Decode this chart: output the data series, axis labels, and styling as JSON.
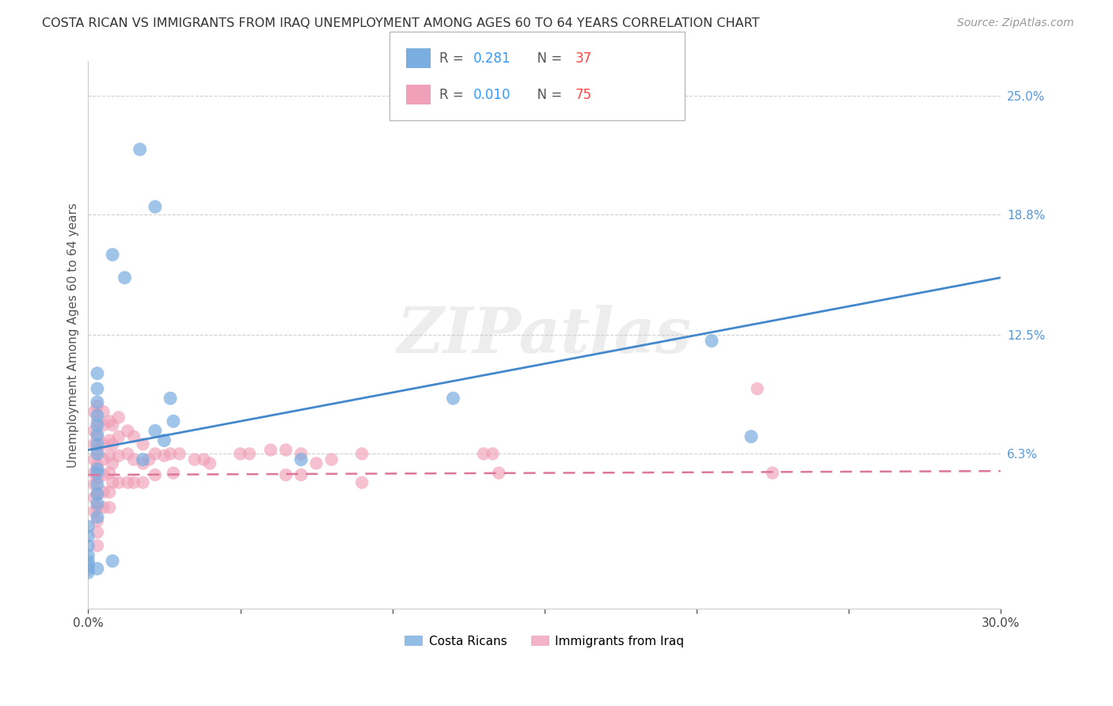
{
  "title": "COSTA RICAN VS IMMIGRANTS FROM IRAQ UNEMPLOYMENT AMONG AGES 60 TO 64 YEARS CORRELATION CHART",
  "source": "Source: ZipAtlas.com",
  "ylabel": "Unemployment Among Ages 60 to 64 years",
  "xlim": [
    0.0,
    0.3
  ],
  "ylim": [
    -0.018,
    0.268
  ],
  "xticks": [
    0.0,
    0.05,
    0.1,
    0.15,
    0.2,
    0.25,
    0.3
  ],
  "xticklabels": [
    "0.0%",
    "",
    "",
    "",
    "",
    "",
    "30.0%"
  ],
  "ytick_positions": [
    0.063,
    0.125,
    0.188,
    0.25
  ],
  "ytick_labels": [
    "6.3%",
    "12.5%",
    "18.8%",
    "25.0%"
  ],
  "grid_color": "#d0d0d0",
  "background_color": "#ffffff",
  "watermark": "ZIPatlas",
  "blue_color": "#7aade0",
  "pink_color": "#f0a0b8",
  "legend_label_blue": "Costa Ricans",
  "legend_label_pink": "Immigrants from Iraq",
  "blue_r": "0.281",
  "blue_n": "37",
  "pink_r": "0.010",
  "pink_n": "75",
  "blue_trend_x": [
    0.0,
    0.3
  ],
  "blue_trend_y": [
    0.065,
    0.155
  ],
  "pink_trend_x": [
    0.0,
    0.3
  ],
  "pink_trend_y": [
    0.052,
    0.054
  ],
  "blue_x": [
    0.017,
    0.022,
    0.008,
    0.012,
    0.003,
    0.003,
    0.003,
    0.003,
    0.003,
    0.003,
    0.003,
    0.003,
    0.003,
    0.003,
    0.003,
    0.003,
    0.003,
    0.003,
    0.0,
    0.0,
    0.0,
    0.0,
    0.0,
    0.0,
    0.0,
    0.0,
    0.027,
    0.028,
    0.022,
    0.025,
    0.018,
    0.12,
    0.205,
    0.218,
    0.07,
    0.008,
    0.003
  ],
  "blue_y": [
    0.222,
    0.192,
    0.167,
    0.155,
    0.105,
    0.097,
    0.09,
    0.083,
    0.078,
    0.073,
    0.068,
    0.063,
    0.055,
    0.053,
    0.047,
    0.042,
    0.037,
    0.03,
    0.025,
    0.02,
    0.015,
    0.01,
    0.007,
    0.005,
    0.003,
    0.001,
    0.092,
    0.08,
    0.075,
    0.07,
    0.06,
    0.092,
    0.122,
    0.072,
    0.06,
    0.007,
    0.003
  ],
  "pink_x": [
    0.002,
    0.002,
    0.002,
    0.002,
    0.002,
    0.002,
    0.002,
    0.002,
    0.003,
    0.003,
    0.003,
    0.003,
    0.003,
    0.003,
    0.003,
    0.003,
    0.003,
    0.003,
    0.003,
    0.005,
    0.005,
    0.005,
    0.005,
    0.005,
    0.005,
    0.005,
    0.007,
    0.007,
    0.007,
    0.007,
    0.007,
    0.007,
    0.008,
    0.008,
    0.008,
    0.008,
    0.01,
    0.01,
    0.01,
    0.01,
    0.013,
    0.013,
    0.013,
    0.015,
    0.015,
    0.015,
    0.018,
    0.018,
    0.018,
    0.02,
    0.022,
    0.022,
    0.025,
    0.027,
    0.028,
    0.03,
    0.035,
    0.038,
    0.04,
    0.05,
    0.053,
    0.06,
    0.065,
    0.065,
    0.07,
    0.07,
    0.075,
    0.08,
    0.09,
    0.09,
    0.13,
    0.133,
    0.135,
    0.22,
    0.225
  ],
  "pink_y": [
    0.085,
    0.075,
    0.068,
    0.06,
    0.053,
    0.047,
    0.04,
    0.033,
    0.088,
    0.08,
    0.072,
    0.065,
    0.057,
    0.05,
    0.042,
    0.035,
    0.028,
    0.022,
    0.015,
    0.085,
    0.078,
    0.068,
    0.06,
    0.052,
    0.043,
    0.035,
    0.08,
    0.07,
    0.062,
    0.053,
    0.043,
    0.035,
    0.078,
    0.068,
    0.058,
    0.048,
    0.082,
    0.072,
    0.062,
    0.048,
    0.075,
    0.063,
    0.048,
    0.072,
    0.06,
    0.048,
    0.068,
    0.058,
    0.048,
    0.06,
    0.063,
    0.052,
    0.062,
    0.063,
    0.053,
    0.063,
    0.06,
    0.06,
    0.058,
    0.063,
    0.063,
    0.065,
    0.065,
    0.052,
    0.063,
    0.052,
    0.058,
    0.06,
    0.063,
    0.048,
    0.063,
    0.063,
    0.053,
    0.097,
    0.053
  ]
}
